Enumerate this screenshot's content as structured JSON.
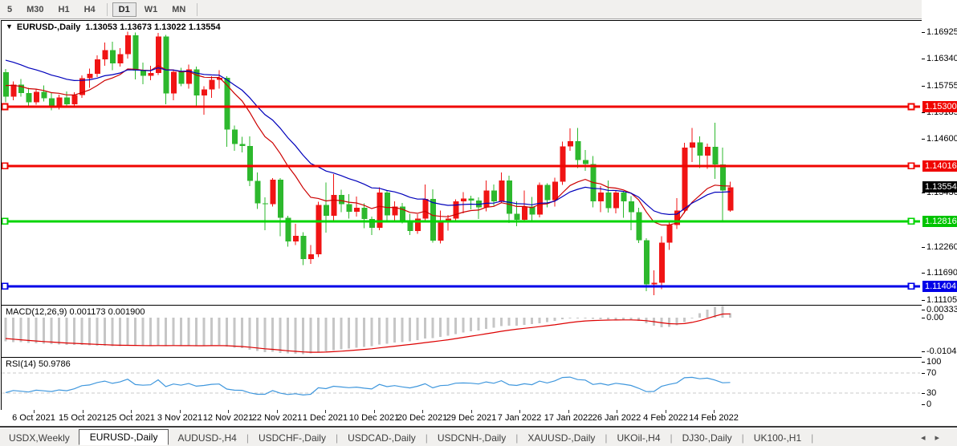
{
  "toolbar": {
    "timeframes": [
      "5",
      "M30",
      "H1",
      "H4",
      "D1",
      "W1",
      "MN"
    ],
    "active_timeframe": "D1"
  },
  "chart_data": {
    "type": "candlestick",
    "symbol": "EURUSD-",
    "timeframe": "Daily",
    "title": "EURUSD-,Daily",
    "ohlc_display": "1.13053 1.13673 1.13022 1.13554",
    "ohlc_label": {
      "open": "1.13053",
      "high": "1.13673",
      "low": "1.13022",
      "close": "1.13554"
    },
    "colors": {
      "bull_candle": "#f01414",
      "bear_candle": "#2db82d",
      "ma_fast_red": "#cc0000",
      "ma_slow_blue": "#0000bb",
      "macd_hist": "#c6c6c6",
      "macd_signal": "#dd0000",
      "rsi_line": "#3f97dd",
      "level_red": "#f00500",
      "level_green": "#00d400",
      "level_blue": "#0000e8",
      "current_price_badge": "#000000"
    },
    "price_axis": {
      "ticks": [
        "1.16925",
        "1.16340",
        "1.15755",
        "1.15185",
        "1.14600",
        "1.13430",
        "1.12260",
        "1.11690",
        "1.11105"
      ],
      "badges": [
        {
          "value": "1.15300",
          "color": "#f00500"
        },
        {
          "value": "1.14016",
          "color": "#f00500"
        },
        {
          "value": "1.13554",
          "color": "#000000"
        },
        {
          "value": "1.12816",
          "color": "#00c400"
        },
        {
          "value": "1.11404",
          "color": "#0000e8"
        }
      ]
    },
    "hlines": [
      {
        "price": 1.153,
        "color": "#f00500"
      },
      {
        "price": 1.14016,
        "color": "#f00500"
      },
      {
        "price": 1.12816,
        "color": "#00d400"
      },
      {
        "price": 1.11404,
        "color": "#0000e8"
      }
    ],
    "current_price": 1.13554,
    "date_axis": [
      "6 Oct 2021",
      "15 Oct 2021",
      "25 Oct 2021",
      "3 Nov 2021",
      "12 Nov 2021",
      "22 Nov 2021",
      "1 Dec 2021",
      "10 Dec 2021",
      "20 Dec 2021",
      "29 Dec 2021",
      "7 Jan 2022",
      "17 Jan 2022",
      "26 Jan 2022",
      "4 Feb 2022",
      "14 Feb 2022"
    ],
    "candles": [
      [
        1.1605,
        1.1612,
        1.154,
        1.1552
      ],
      [
        1.1552,
        1.1585,
        1.1544,
        1.1578
      ],
      [
        1.1578,
        1.159,
        1.1552,
        1.156
      ],
      [
        1.156,
        1.1571,
        1.1529,
        1.154
      ],
      [
        1.154,
        1.1568,
        1.1534,
        1.1562
      ],
      [
        1.1562,
        1.1576,
        1.1541,
        1.1548
      ],
      [
        1.1548,
        1.1561,
        1.1522,
        1.1532
      ],
      [
        1.1532,
        1.1556,
        1.1524,
        1.155
      ],
      [
        1.155,
        1.1563,
        1.1528,
        1.1535
      ],
      [
        1.1535,
        1.1561,
        1.1528,
        1.1555
      ],
      [
        1.1555,
        1.1598,
        1.1549,
        1.1592
      ],
      [
        1.1592,
        1.1613,
        1.1571,
        1.1601
      ],
      [
        1.1601,
        1.1641,
        1.1594,
        1.1633
      ],
      [
        1.1633,
        1.1669,
        1.1619,
        1.1653
      ],
      [
        1.1653,
        1.1671,
        1.1609,
        1.1624
      ],
      [
        1.1624,
        1.1657,
        1.1617,
        1.1644
      ],
      [
        1.1644,
        1.16925,
        1.1634,
        1.1685
      ],
      [
        1.1685,
        1.1691,
        1.1589,
        1.1608
      ],
      [
        1.1608,
        1.1626,
        1.1579,
        1.1597
      ],
      [
        1.1597,
        1.1619,
        1.1587,
        1.1603
      ],
      [
        1.1603,
        1.169,
        1.1599,
        1.1682
      ],
      [
        1.1682,
        1.1686,
        1.1535,
        1.1559
      ],
      [
        1.1559,
        1.161,
        1.1544,
        1.1606
      ],
      [
        1.1606,
        1.1614,
        1.1574,
        1.158
      ],
      [
        1.158,
        1.1621,
        1.1569,
        1.1611
      ],
      [
        1.1611,
        1.1617,
        1.1527,
        1.1554
      ],
      [
        1.1554,
        1.1574,
        1.1513,
        1.1567
      ],
      [
        1.1567,
        1.1596,
        1.1549,
        1.1588
      ],
      [
        1.1588,
        1.1609,
        1.1569,
        1.1593
      ],
      [
        1.1593,
        1.1596,
        1.1443,
        1.148
      ],
      [
        1.148,
        1.1489,
        1.1434,
        1.1449
      ],
      [
        1.1449,
        1.1465,
        1.1431,
        1.1445
      ],
      [
        1.1445,
        1.1466,
        1.1358,
        1.1369
      ],
      [
        1.1369,
        1.1387,
        1.1308,
        1.132
      ],
      [
        1.132,
        1.1333,
        1.1262,
        1.1319
      ],
      [
        1.1319,
        1.1375,
        1.1313,
        1.1372
      ],
      [
        1.1372,
        1.1375,
        1.1249,
        1.1289
      ],
      [
        1.1289,
        1.1293,
        1.1226,
        1.1238
      ],
      [
        1.1238,
        1.1276,
        1.123,
        1.125
      ],
      [
        1.125,
        1.1258,
        1.1186,
        1.1199
      ],
      [
        1.1199,
        1.123,
        1.1189,
        1.121
      ],
      [
        1.121,
        1.1324,
        1.1204,
        1.1317
      ],
      [
        1.1317,
        1.1366,
        1.1257,
        1.1293
      ],
      [
        1.1293,
        1.1384,
        1.1279,
        1.1339
      ],
      [
        1.1339,
        1.135,
        1.1301,
        1.1319
      ],
      [
        1.1319,
        1.134,
        1.1287,
        1.1302
      ],
      [
        1.1302,
        1.1335,
        1.1292,
        1.1311
      ],
      [
        1.1311,
        1.132,
        1.1266,
        1.1286
      ],
      [
        1.1286,
        1.1292,
        1.1252,
        1.1267
      ],
      [
        1.1267,
        1.1355,
        1.1262,
        1.1344
      ],
      [
        1.1344,
        1.1349,
        1.1279,
        1.1294
      ],
      [
        1.1294,
        1.1325,
        1.1284,
        1.1313
      ],
      [
        1.1313,
        1.1321,
        1.1277,
        1.1284
      ],
      [
        1.1284,
        1.1298,
        1.1252,
        1.126
      ],
      [
        1.126,
        1.1297,
        1.1254,
        1.1287
      ],
      [
        1.1287,
        1.1361,
        1.1281,
        1.133
      ],
      [
        1.133,
        1.1351,
        1.1235,
        1.1239
      ],
      [
        1.1239,
        1.1305,
        1.1233,
        1.128
      ],
      [
        1.128,
        1.1295,
        1.1261,
        1.1287
      ],
      [
        1.1287,
        1.1329,
        1.1281,
        1.1325
      ],
      [
        1.1325,
        1.1345,
        1.1299,
        1.1331
      ],
      [
        1.1331,
        1.1337,
        1.1307,
        1.1326
      ],
      [
        1.1326,
        1.1333,
        1.1286,
        1.1312
      ],
      [
        1.1312,
        1.137,
        1.1303,
        1.1348
      ],
      [
        1.1348,
        1.1361,
        1.1315,
        1.1325
      ],
      [
        1.1325,
        1.1387,
        1.132,
        1.137
      ],
      [
        1.137,
        1.138,
        1.1278,
        1.1298
      ],
      [
        1.1298,
        1.1325,
        1.1271,
        1.1285
      ],
      [
        1.1285,
        1.1348,
        1.1279,
        1.1313
      ],
      [
        1.1313,
        1.1334,
        1.1284,
        1.1296
      ],
      [
        1.1296,
        1.1366,
        1.129,
        1.136
      ],
      [
        1.136,
        1.1364,
        1.1312,
        1.1327
      ],
      [
        1.1327,
        1.1376,
        1.1313,
        1.1367
      ],
      [
        1.1367,
        1.1454,
        1.136,
        1.1444
      ],
      [
        1.1444,
        1.1483,
        1.1434,
        1.1455
      ],
      [
        1.1455,
        1.1484,
        1.1397,
        1.1414
      ],
      [
        1.1414,
        1.1436,
        1.1391,
        1.1406
      ],
      [
        1.1406,
        1.1423,
        1.1312,
        1.1325
      ],
      [
        1.1325,
        1.1358,
        1.1301,
        1.1344
      ],
      [
        1.1344,
        1.137,
        1.13,
        1.131
      ],
      [
        1.131,
        1.1349,
        1.1299,
        1.1344
      ],
      [
        1.1344,
        1.1346,
        1.1289,
        1.1325
      ],
      [
        1.1325,
        1.1336,
        1.1262,
        1.1301
      ],
      [
        1.1301,
        1.1311,
        1.1234,
        1.124
      ],
      [
        1.124,
        1.1245,
        1.113,
        1.1145
      ],
      [
        1.1145,
        1.1175,
        1.1121,
        1.1148
      ],
      [
        1.1148,
        1.1249,
        1.1134,
        1.1235
      ],
      [
        1.1235,
        1.1281,
        1.1219,
        1.1273
      ],
      [
        1.1273,
        1.1332,
        1.1265,
        1.1305
      ],
      [
        1.1305,
        1.1452,
        1.1299,
        1.1441
      ],
      [
        1.1441,
        1.1484,
        1.141,
        1.1453
      ],
      [
        1.1453,
        1.1466,
        1.1397,
        1.1424
      ],
      [
        1.1424,
        1.145,
        1.1395,
        1.1443
      ],
      [
        1.1443,
        1.1495,
        1.1373,
        1.1405
      ],
      [
        1.1405,
        1.1441,
        1.1282,
        1.1348
      ],
      [
        1.1305,
        1.1367,
        1.1302,
        1.13554
      ]
    ],
    "moving_averages": [
      {
        "name": "ma-fast",
        "color": "#cc0000",
        "period": 13,
        "seed": 1.158
      },
      {
        "name": "ma-slow",
        "color": "#0000bb",
        "period": 23,
        "seed": 1.1638
      }
    ],
    "macd": {
      "label": "MACD(12,26,9)",
      "values_text": "0.001173 0.001900",
      "axis": [
        {
          "text": "0.003331",
          "value": 0.003331
        },
        {
          "text": "0.00",
          "value": 0.0
        },
        {
          "text": "-0.010439",
          "value": -0.010439
        }
      ],
      "main": [
        -0.0068,
        -0.007,
        -0.0071,
        -0.0073,
        -0.0074,
        -0.0075,
        -0.0076,
        -0.0077,
        -0.0078,
        -0.0078,
        -0.0079,
        -0.008,
        -0.0081,
        -0.0081,
        -0.0082,
        -0.0082,
        -0.0081,
        -0.0081,
        -0.0082,
        -0.0081,
        -0.008,
        -0.0081,
        -0.008,
        -0.0081,
        -0.008,
        -0.0082,
        -0.0081,
        -0.008,
        -0.0079,
        -0.0083,
        -0.0086,
        -0.0088,
        -0.0092,
        -0.0096,
        -0.0099,
        -0.0098,
        -0.0101,
        -0.0103,
        -0.0104,
        -0.01044,
        -0.0103,
        -0.0099,
        -0.0097,
        -0.0093,
        -0.0091,
        -0.0089,
        -0.0086,
        -0.0084,
        -0.0082,
        -0.0077,
        -0.0075,
        -0.0072,
        -0.007,
        -0.0068,
        -0.0065,
        -0.006,
        -0.0059,
        -0.0056,
        -0.0052,
        -0.0047,
        -0.0043,
        -0.004,
        -0.0037,
        -0.0032,
        -0.0029,
        -0.0025,
        -0.0023,
        -0.0023,
        -0.0021,
        -0.0019,
        -0.0016,
        -0.0013,
        -0.001,
        -0.0005,
        -0.0002,
        -0.0001,
        -0.0002,
        -0.0004,
        -0.0005,
        -0.0005,
        -0.0006,
        -0.0006,
        -0.0007,
        -0.001,
        -0.0016,
        -0.0023,
        -0.0028,
        -0.0027,
        -0.0022,
        -0.0013,
        -0.0001,
        0.0012,
        0.0023,
        0.003,
        0.00333,
        0.0012
      ],
      "signal_period": 9
    },
    "rsi": {
      "label": "RSI(14)",
      "value_text": "50.9786",
      "period": 14,
      "levels": [
        70,
        30
      ],
      "axis": [
        {
          "text": "100",
          "value": 100
        },
        {
          "text": "70",
          "value": 70
        },
        {
          "text": "30",
          "value": 30
        },
        {
          "text": "0",
          "value": 0
        }
      ]
    }
  },
  "tabs": {
    "items": [
      "USDX,Weekly",
      "EURUSD-,Daily",
      "AUDUSD-,H4",
      "USDCHF-,Daily",
      "USDCAD-,Daily",
      "USDCNH-,Daily",
      "XAUUSD-,Daily",
      "UKOil-,H4",
      "DJ30-,Daily",
      "UK100-,H1"
    ],
    "active": "EURUSD-,Daily",
    "scroll_left": "◂",
    "scroll_right": "▸"
  }
}
